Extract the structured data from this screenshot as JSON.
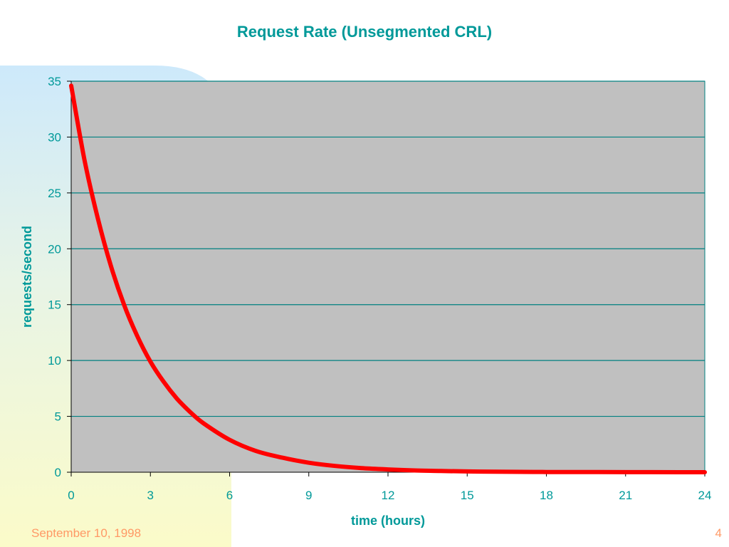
{
  "slide": {
    "title": "Request Rate (Unsegmented CRL)",
    "footer_date": "September 10, 1998",
    "page_number": "4"
  },
  "colors": {
    "title": "#009999",
    "axis_text": "#009999",
    "plot_background": "#c0c0c0",
    "gridline": "#008080",
    "series": "#ff0000",
    "footer": "#ff9966"
  },
  "chart_data": {
    "type": "line",
    "title": "",
    "xlabel": "time (hours)",
    "ylabel": "requests/second",
    "xlim": [
      0,
      24
    ],
    "ylim": [
      0,
      35
    ],
    "xticks": [
      "0",
      "3",
      "6",
      "9",
      "12",
      "15",
      "18",
      "21",
      "24"
    ],
    "yticks": [
      "0",
      "5",
      "10",
      "15",
      "20",
      "25",
      "30",
      "35"
    ],
    "grid": "horizontal",
    "legend": "none",
    "series": [
      {
        "x": [
          0,
          0.5,
          1,
          1.5,
          2,
          2.5,
          3,
          3.5,
          4,
          4.5,
          5,
          6,
          7,
          8,
          9,
          10,
          11,
          12,
          13,
          14,
          15,
          16,
          17,
          18,
          19,
          20,
          21,
          22,
          23,
          24
        ],
        "y": [
          34.6,
          28.0,
          22.8,
          18.5,
          15.0,
          12.2,
          9.9,
          8.1,
          6.6,
          5.4,
          4.4,
          2.9,
          1.9,
          1.3,
          0.85,
          0.56,
          0.37,
          0.25,
          0.16,
          0.11,
          0.07,
          0.05,
          0.03,
          0.02,
          0.015,
          0.01,
          0.007,
          0.005,
          0.003,
          0.002
        ]
      }
    ]
  }
}
